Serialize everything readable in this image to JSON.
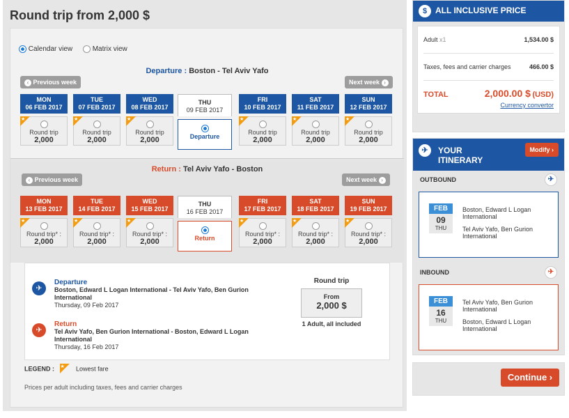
{
  "title": "Round trip from 2,000 $",
  "views": {
    "calendar": "Calendar view",
    "matrix": "Matrix view"
  },
  "departure": {
    "label": "Departure :",
    "route": "Boston - Tel Aviv Yafo",
    "prev_week": "Previous week",
    "next_week": "Next week",
    "days": [
      {
        "day": "MON",
        "date": "06 FEB 2017",
        "type": "Round trip",
        "price": "2,000"
      },
      {
        "day": "TUE",
        "date": "07 FEB 2017",
        "type": "Round trip",
        "price": "2,000"
      },
      {
        "day": "WED",
        "date": "08 FEB 2017",
        "type": "Round trip",
        "price": "2,000"
      },
      {
        "day": "THU",
        "date": "09 FEB 2017",
        "selected_label": "Departure"
      },
      {
        "day": "FRI",
        "date": "10 FEB 2017",
        "type": "Round trip",
        "price": "2,000"
      },
      {
        "day": "SAT",
        "date": "11 FEB 2017",
        "type": "Round trip",
        "price": "2,000"
      },
      {
        "day": "SUN",
        "date": "12 FEB 2017",
        "type": "Round trip",
        "price": "2,000"
      }
    ]
  },
  "return": {
    "label": "Return :",
    "route": "Tel Aviv Yafo - Boston",
    "prev_week": "Previous week",
    "next_week": "Next week",
    "days": [
      {
        "day": "MON",
        "date": "13 FEB 2017",
        "type": "Round trip* :",
        "price": "2,000"
      },
      {
        "day": "TUE",
        "date": "14 FEB 2017",
        "type": "Round trip* :",
        "price": "2,000"
      },
      {
        "day": "WED",
        "date": "15 FEB 2017",
        "type": "Round trip* :",
        "price": "2,000"
      },
      {
        "day": "THU",
        "date": "16 FEB 2017",
        "selected_label": "Return"
      },
      {
        "day": "FRI",
        "date": "17 FEB 2017",
        "type": "Round trip* :",
        "price": "2,000"
      },
      {
        "day": "SAT",
        "date": "18 FEB 2017",
        "type": "Round trip* :",
        "price": "2,000"
      },
      {
        "day": "SUN",
        "date": "19 FEB 2017",
        "type": "Round trip* :",
        "price": "2,000"
      }
    ]
  },
  "summary": {
    "dep_title": "Departure",
    "dep_route": "Boston, Edward L Logan International - Tel Aviv Yafo, Ben Gurion International",
    "dep_date": "Thursday, 09 Feb 2017",
    "ret_title": "Return",
    "ret_route": "Tel Aviv Yafo, Ben Gurion International - Boston, Edward L Logan International",
    "ret_date": "Thursday, 16 Feb 2017",
    "rt_label": "Round trip",
    "from": "From",
    "price": "2,000 $",
    "pax": "1 Adult, all included"
  },
  "legend": {
    "label": "LEGEND :",
    "text": "Lowest fare"
  },
  "footnote": "Prices per adult including taxes, fees and carrier charges",
  "price_panel": {
    "header": "ALL INCLUSIVE PRICE",
    "adult_label": "Adult",
    "adult_qty": "x1",
    "adult_price": "1,534.00 $",
    "tax_label": "Taxes, fees and carrier charges",
    "tax_price": "466.00 $",
    "total_label": "TOTAL",
    "total_value": "2,000.00 $",
    "currency": "(USD)",
    "converter": "Currency convertor"
  },
  "itinerary": {
    "header": "YOUR ITINERARY",
    "modify": "Modify",
    "outbound": {
      "label": "OUTBOUND",
      "month": "FEB",
      "day": "09",
      "wday": "THU",
      "from": "Boston, Edward L Logan International",
      "to": "Tel Aviv Yafo, Ben Gurion International"
    },
    "inbound": {
      "label": "INBOUND",
      "month": "FEB",
      "day": "16",
      "wday": "THU",
      "from": "Tel Aviv Yafo, Ben Gurion International",
      "to": "Boston, Edward L Logan International"
    }
  },
  "continue": "Continue"
}
